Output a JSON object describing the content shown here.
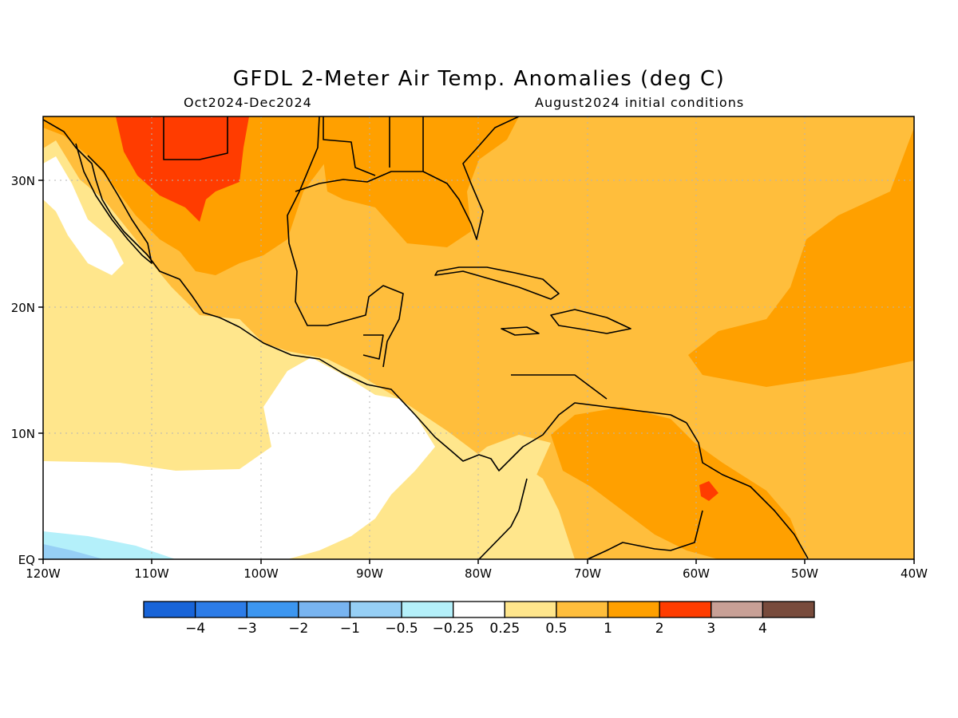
{
  "title": "GFDL 2-Meter Air Temp. Anomalies (deg C)",
  "subtitle_left": "Oct2024-Dec2024",
  "subtitle_right": "August2024 initial conditions",
  "x_ticks": [
    "120W",
    "110W",
    "100W",
    "90W",
    "80W",
    "70W",
    "60W",
    "50W",
    "40W"
  ],
  "y_ticks": [
    "EQ",
    "10N",
    "20N",
    "30N"
  ],
  "colorbar": {
    "colors": [
      "#1864d8",
      "#2c7ce8",
      "#3c96f0",
      "#78b4f0",
      "#96cff5",
      "#b4f0fa",
      "#ffffff",
      "#ffe68c",
      "#ffbe3c",
      "#ffa000",
      "#ff3c00",
      "#c8a096",
      "#784b3c"
    ],
    "labels": [
      "-4",
      "-3",
      "-2",
      "-1",
      "-0.5",
      "-0.25",
      "0.25",
      "0.5",
      "1",
      "2",
      "3",
      "4"
    ]
  }
}
